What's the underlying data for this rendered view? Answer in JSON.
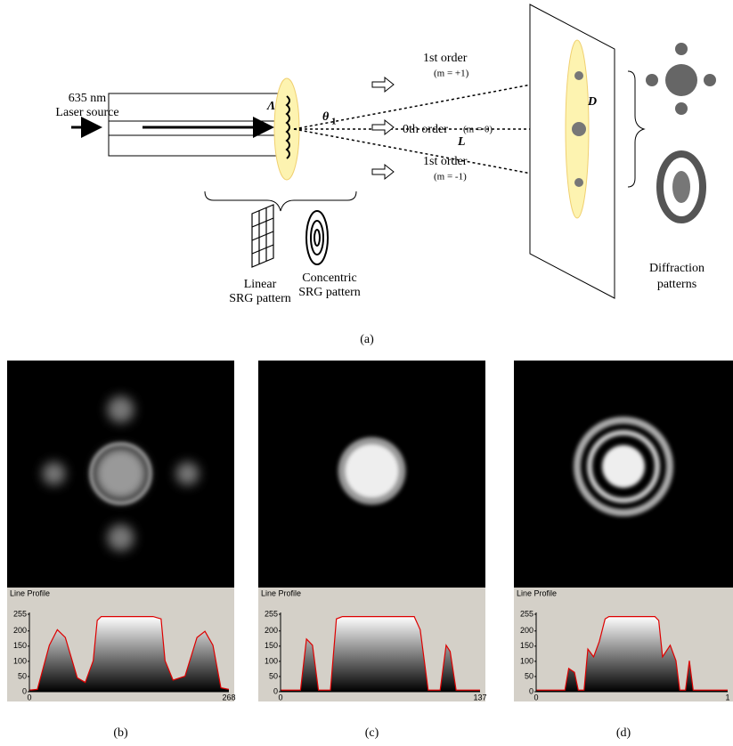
{
  "diagram": {
    "source_line1": "635 nm",
    "source_line2": "Laser source",
    "grating_period": "Λ",
    "angle": "θ",
    "angle_sub": "1",
    "orders": [
      {
        "label": "1st order",
        "sub": "(m = +1)"
      },
      {
        "label": "0th order",
        "sub": "(m = 0)"
      },
      {
        "label": "1st order",
        "sub": "(m = -1)"
      }
    ],
    "distance": "L",
    "spacing": "D",
    "linear": [
      "Linear",
      "SRG pattern"
    ],
    "concentric": [
      "Concentric",
      "SRG pattern"
    ],
    "diffraction": [
      "Diffraction",
      "patterns"
    ],
    "caption": "(a)"
  },
  "panels": [
    {
      "caption": "(b)",
      "profile_title": "Line Profile",
      "yticks": [
        "255",
        "200",
        "150",
        "100",
        "50",
        "0"
      ],
      "xticks": [
        "0",
        "268"
      ]
    },
    {
      "caption": "(c)",
      "profile_title": "Line Profile",
      "yticks": [
        "255",
        "200",
        "150",
        "100",
        "50",
        "0"
      ],
      "xticks": [
        "0",
        "137"
      ]
    },
    {
      "caption": "(d)",
      "profile_title": "Line Profile",
      "yticks": [
        "255",
        "200",
        "150",
        "100",
        "50",
        "0"
      ],
      "xticks": [
        "0",
        "1"
      ]
    }
  ]
}
